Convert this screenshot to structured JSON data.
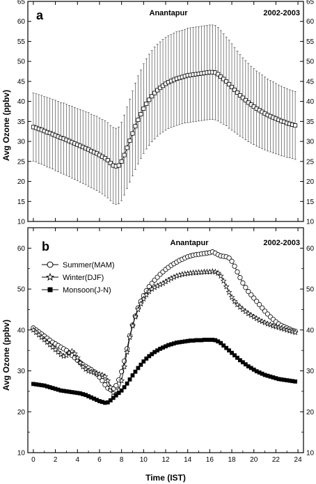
{
  "chart_data": [
    {
      "type": "line",
      "panel_label": "a",
      "station": "Anantapur",
      "period": "2002-2003",
      "ylabel": "Avg Ozone (ppbv)",
      "xlabel": "",
      "xlim": [
        -0.5,
        24.5
      ],
      "ylim": [
        10,
        65
      ],
      "yticks": [
        10,
        15,
        20,
        25,
        30,
        35,
        40,
        45,
        50,
        55,
        60,
        65
      ],
      "x": [
        0,
        0.25,
        0.5,
        0.75,
        1,
        1.25,
        1.5,
        1.75,
        2,
        2.25,
        2.5,
        2.75,
        3,
        3.25,
        3.5,
        3.75,
        4,
        4.25,
        4.5,
        4.75,
        5,
        5.25,
        5.5,
        5.75,
        6,
        6.25,
        6.5,
        6.75,
        7,
        7.25,
        7.5,
        7.75,
        8,
        8.25,
        8.5,
        8.75,
        9,
        9.25,
        9.5,
        9.75,
        10,
        10.25,
        10.5,
        10.75,
        11,
        11.25,
        11.5,
        11.75,
        12,
        12.25,
        12.5,
        12.75,
        13,
        13.25,
        13.5,
        13.75,
        14,
        14.25,
        14.5,
        14.75,
        15,
        15.25,
        15.5,
        15.75,
        16,
        16.25,
        16.5,
        16.75,
        17,
        17.25,
        17.5,
        17.75,
        18,
        18.25,
        18.5,
        18.75,
        19,
        19.25,
        19.5,
        19.75,
        20,
        20.25,
        20.5,
        20.75,
        21,
        21.25,
        21.5,
        21.75,
        22,
        22.25,
        22.5,
        22.75,
        23,
        23.25,
        23.5,
        23.75
      ],
      "series": [
        {
          "marker": "open-square",
          "values": [
            33.6,
            33.4,
            33.1,
            32.9,
            32.6,
            32.3,
            32.1,
            31.8,
            31.5,
            31.2,
            30.9,
            30.7,
            30.4,
            30.1,
            29.8,
            29.5,
            29.2,
            28.9,
            28.6,
            28.3,
            28.0,
            27.6,
            27.3,
            27.0,
            26.6,
            26.2,
            25.8,
            25.3,
            24.6,
            24.0,
            23.8,
            24.0,
            25.0,
            26.6,
            28.4,
            30.2,
            32.0,
            33.8,
            35.4,
            36.8,
            38.2,
            39.4,
            40.4,
            41.3,
            42.1,
            42.8,
            43.4,
            43.9,
            44.4,
            44.8,
            45.1,
            45.4,
            45.7,
            45.9,
            46.1,
            46.3,
            46.5,
            46.6,
            46.7,
            46.8,
            46.9,
            47.0,
            47.1,
            47.2,
            47.3,
            47.3,
            47.2,
            46.8,
            46.2,
            45.6,
            45.0,
            44.3,
            43.6,
            42.9,
            42.2,
            41.5,
            40.9,
            40.3,
            39.7,
            39.2,
            38.7,
            38.2,
            37.8,
            37.4,
            37.0,
            36.6,
            36.3,
            36.0,
            35.7,
            35.4,
            35.1,
            34.9,
            34.6,
            34.4,
            34.2,
            34.0
          ],
          "error": [
            8.5,
            8.5,
            8.6,
            8.6,
            8.6,
            8.7,
            8.7,
            8.7,
            8.8,
            8.8,
            8.8,
            8.9,
            8.9,
            8.9,
            9.0,
            9.0,
            9.0,
            9.1,
            9.1,
            9.1,
            9.2,
            9.2,
            9.2,
            9.3,
            9.3,
            9.3,
            9.4,
            9.4,
            9.4,
            9.5,
            9.5,
            9.6,
            9.8,
            10.0,
            10.2,
            10.4,
            10.6,
            10.8,
            11.0,
            11.1,
            11.2,
            11.3,
            11.4,
            11.4,
            11.5,
            11.5,
            11.5,
            11.6,
            11.6,
            11.6,
            11.6,
            11.7,
            11.7,
            11.7,
            11.7,
            11.7,
            11.8,
            11.8,
            11.8,
            11.8,
            11.8,
            11.8,
            11.8,
            11.8,
            11.8,
            11.8,
            11.8,
            11.7,
            11.5,
            11.3,
            11.1,
            11.0,
            10.8,
            10.6,
            10.4,
            10.2,
            10.0,
            9.9,
            9.8,
            9.6,
            9.5,
            9.4,
            9.3,
            9.2,
            9.1,
            9.0,
            8.9,
            8.9,
            8.8,
            8.7,
            8.7,
            8.6,
            8.6,
            8.5,
            8.5,
            8.5
          ]
        }
      ]
    },
    {
      "type": "line",
      "panel_label": "b",
      "station": "Anantapur",
      "period": "2002-2003",
      "ylabel": "Avg Ozone (ppbv)",
      "xlabel": "Time (IST)",
      "xlim": [
        -0.5,
        24.5
      ],
      "ylim": [
        10,
        65
      ],
      "yticks": [
        10,
        20,
        30,
        40,
        50,
        60
      ],
      "xticks": [
        0,
        2,
        4,
        6,
        8,
        10,
        12,
        14,
        16,
        18,
        20,
        22,
        24
      ],
      "legend_position": "top-left",
      "x": [
        0,
        0.25,
        0.5,
        0.75,
        1,
        1.25,
        1.5,
        1.75,
        2,
        2.25,
        2.5,
        2.75,
        3,
        3.25,
        3.5,
        3.75,
        4,
        4.25,
        4.5,
        4.75,
        5,
        5.25,
        5.5,
        5.75,
        6,
        6.25,
        6.5,
        6.75,
        7,
        7.25,
        7.5,
        7.75,
        8,
        8.25,
        8.5,
        8.75,
        9,
        9.25,
        9.5,
        9.75,
        10,
        10.25,
        10.5,
        10.75,
        11,
        11.25,
        11.5,
        11.75,
        12,
        12.25,
        12.5,
        12.75,
        13,
        13.25,
        13.5,
        13.75,
        14,
        14.25,
        14.5,
        14.75,
        15,
        15.25,
        15.5,
        15.75,
        16,
        16.25,
        16.5,
        16.75,
        17,
        17.25,
        17.5,
        17.75,
        18,
        18.25,
        18.5,
        18.75,
        19,
        19.25,
        19.5,
        19.75,
        20,
        20.25,
        20.5,
        20.75,
        21,
        21.25,
        21.5,
        21.75,
        22,
        22.25,
        22.5,
        22.75,
        23,
        23.25,
        23.5,
        23.75
      ],
      "series": [
        {
          "name": "Summer(MAM)",
          "marker": "open-circle",
          "values": [
            40.5,
            40.0,
            39.5,
            39.0,
            38.5,
            38.0,
            37.5,
            37.0,
            36.6,
            36.2,
            35.8,
            35.4,
            35.0,
            34.4,
            33.8,
            33.2,
            32.6,
            32.0,
            31.5,
            31.1,
            30.7,
            30.3,
            29.8,
            29.2,
            28.5,
            27.6,
            26.6,
            25.8,
            25.4,
            25.6,
            26.4,
            27.8,
            29.8,
            32.4,
            35.4,
            38.6,
            41.2,
            43.4,
            45.4,
            47.0,
            48.4,
            49.6,
            50.6,
            51.4,
            52.2,
            52.9,
            53.6,
            54.2,
            54.8,
            55.3,
            55.8,
            56.2,
            56.6,
            57.0,
            57.3,
            57.6,
            57.9,
            58.1,
            58.3,
            58.4,
            58.5,
            58.6,
            58.7,
            58.8,
            58.9,
            59.1,
            58.8,
            58.4,
            58.1,
            58.0,
            57.9,
            57.6,
            56.8,
            55.6,
            54.2,
            52.8,
            51.5,
            50.4,
            49.4,
            48.6,
            47.8,
            47.0,
            46.2,
            45.4,
            44.6,
            43.9,
            43.2,
            42.6,
            42.0,
            41.5,
            41.1,
            40.8,
            40.5,
            40.2,
            39.9,
            39.7
          ]
        },
        {
          "name": "Winter(DJF)",
          "marker": "open-star",
          "values": [
            40.0,
            39.4,
            38.8,
            38.2,
            37.6,
            37.0,
            36.4,
            35.8,
            35.2,
            34.6,
            34.0,
            33.6,
            33.8,
            34.4,
            34.8,
            34.2,
            33.2,
            32.0,
            31.0,
            30.4,
            30.0,
            29.8,
            29.6,
            29.4,
            29.2,
            29.0,
            28.6,
            27.6,
            26.0,
            24.6,
            24.2,
            25.4,
            27.6,
            31.0,
            34.6,
            38.2,
            41.0,
            43.2,
            45.0,
            46.4,
            47.6,
            48.6,
            49.4,
            50.0,
            50.4,
            50.8,
            51.1,
            51.4,
            51.8,
            52.2,
            52.6,
            52.9,
            53.2,
            53.4,
            53.6,
            53.7,
            53.8,
            53.9,
            54.0,
            54.0,
            54.1,
            54.1,
            54.2,
            54.2,
            54.2,
            54.3,
            54.2,
            53.9,
            53.2,
            52.0,
            50.6,
            49.2,
            48.0,
            47.0,
            46.2,
            45.6,
            45.0,
            44.5,
            44.0,
            43.6,
            43.2,
            42.8,
            42.4,
            42.1,
            41.8,
            41.5,
            41.3,
            41.0,
            40.8,
            40.6,
            40.4,
            40.2,
            40.0,
            39.8,
            39.6,
            39.4
          ]
        },
        {
          "name": "Monsoon(J-N)",
          "marker": "filled-square",
          "values": [
            26.8,
            26.7,
            26.6,
            26.5,
            26.4,
            26.2,
            26.0,
            25.8,
            25.6,
            25.4,
            25.2,
            25.1,
            25.0,
            24.9,
            24.8,
            24.7,
            24.6,
            24.5,
            24.3,
            24.1,
            23.8,
            23.5,
            23.2,
            22.9,
            22.6,
            22.4,
            22.2,
            22.3,
            22.8,
            23.4,
            24.0,
            24.6,
            25.2,
            26.0,
            26.9,
            27.9,
            28.9,
            29.8,
            30.7,
            31.5,
            32.3,
            33.0,
            33.6,
            34.1,
            34.6,
            35.0,
            35.4,
            35.7,
            36.0,
            36.3,
            36.5,
            36.7,
            36.9,
            37.0,
            37.1,
            37.2,
            37.3,
            37.4,
            37.4,
            37.5,
            37.5,
            37.5,
            37.6,
            37.6,
            37.6,
            37.6,
            37.5,
            37.2,
            36.8,
            36.2,
            35.6,
            35.0,
            34.4,
            33.8,
            33.2,
            32.6,
            32.1,
            31.6,
            31.1,
            30.7,
            30.3,
            29.9,
            29.6,
            29.3,
            29.0,
            28.8,
            28.6,
            28.4,
            28.2,
            28.0,
            27.9,
            27.8,
            27.7,
            27.6,
            27.5,
            27.4
          ]
        }
      ]
    }
  ]
}
